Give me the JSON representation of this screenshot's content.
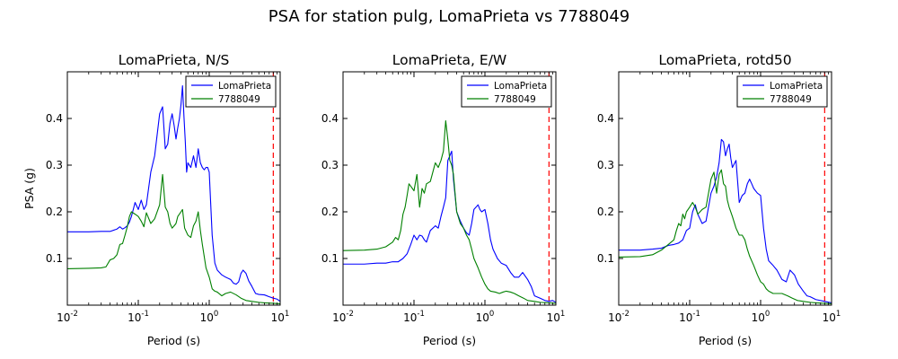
{
  "figure": {
    "suptitle": "PSA for station pulg, LomaPrieta vs 7788049"
  },
  "colors": {
    "LomaPrieta": "#0000ff",
    "7788049": "#008000",
    "reference_line": "#ff0000"
  },
  "chart_data": [
    {
      "type": "line",
      "title": "LomaPrieta, N/S",
      "xlabel": "Period (s)",
      "ylabel": "PSA (g)",
      "xscale": "log",
      "xlim": [
        0.01,
        10
      ],
      "ylim": [
        0,
        0.5
      ],
      "xticks": [
        0.01,
        0.1,
        1,
        10
      ],
      "xtick_labels": [
        {
          "base": "10",
          "exp": "-2"
        },
        {
          "base": "10",
          "exp": "-1"
        },
        {
          "base": "10",
          "exp": "0"
        },
        {
          "base": "10",
          "exp": "1"
        }
      ],
      "yticks": [
        0.1,
        0.2,
        0.3,
        0.4
      ],
      "ytick_labels": [
        "0.1",
        "0.2",
        "0.3",
        "0.4"
      ],
      "legend": "top-right",
      "grid": false,
      "vline": 8,
      "series": [
        {
          "name": "LomaPrieta",
          "x": [
            0.01,
            0.02,
            0.03,
            0.04,
            0.05,
            0.055,
            0.06,
            0.065,
            0.07,
            0.075,
            0.08,
            0.085,
            0.09,
            0.1,
            0.11,
            0.12,
            0.13,
            0.15,
            0.17,
            0.2,
            0.22,
            0.24,
            0.26,
            0.28,
            0.3,
            0.32,
            0.34,
            0.36,
            0.38,
            0.4,
            0.42,
            0.44,
            0.46,
            0.48,
            0.5,
            0.55,
            0.6,
            0.65,
            0.7,
            0.75,
            0.8,
            0.85,
            0.9,
            0.95,
            1.0,
            1.1,
            1.2,
            1.3,
            1.5,
            1.7,
            2.0,
            2.2,
            2.4,
            2.6,
            2.8,
            3.0,
            3.3,
            3.6,
            4.0,
            4.5,
            5.0,
            6.0,
            7.0,
            8.0,
            9.0,
            10.0
          ],
          "y": [
            0.157,
            0.157,
            0.158,
            0.158,
            0.163,
            0.168,
            0.163,
            0.166,
            0.17,
            0.178,
            0.19,
            0.205,
            0.22,
            0.205,
            0.225,
            0.205,
            0.215,
            0.285,
            0.32,
            0.41,
            0.425,
            0.335,
            0.345,
            0.39,
            0.41,
            0.385,
            0.356,
            0.38,
            0.4,
            0.43,
            0.47,
            0.405,
            0.35,
            0.285,
            0.305,
            0.295,
            0.32,
            0.295,
            0.335,
            0.305,
            0.295,
            0.29,
            0.295,
            0.295,
            0.285,
            0.15,
            0.09,
            0.075,
            0.065,
            0.06,
            0.055,
            0.047,
            0.045,
            0.05,
            0.068,
            0.075,
            0.068,
            0.052,
            0.04,
            0.025,
            0.023,
            0.022,
            0.018,
            0.015,
            0.013,
            0.008
          ]
        },
        {
          "name": "7788049",
          "x": [
            0.01,
            0.02,
            0.03,
            0.035,
            0.04,
            0.045,
            0.05,
            0.055,
            0.06,
            0.065,
            0.07,
            0.075,
            0.08,
            0.09,
            0.1,
            0.11,
            0.12,
            0.13,
            0.15,
            0.17,
            0.2,
            0.22,
            0.24,
            0.26,
            0.28,
            0.3,
            0.32,
            0.34,
            0.36,
            0.38,
            0.4,
            0.42,
            0.45,
            0.5,
            0.55,
            0.6,
            0.65,
            0.7,
            0.75,
            0.8,
            0.9,
            1.0,
            1.1,
            1.2,
            1.3,
            1.5,
            1.7,
            2.0,
            2.4,
            2.8,
            3.3,
            4.0,
            5.0,
            6.0,
            8.0,
            10.0
          ],
          "y": [
            0.078,
            0.079,
            0.08,
            0.082,
            0.097,
            0.1,
            0.108,
            0.13,
            0.132,
            0.15,
            0.168,
            0.19,
            0.2,
            0.195,
            0.19,
            0.18,
            0.168,
            0.198,
            0.175,
            0.185,
            0.215,
            0.28,
            0.21,
            0.2,
            0.175,
            0.165,
            0.17,
            0.175,
            0.19,
            0.195,
            0.2,
            0.205,
            0.165,
            0.15,
            0.145,
            0.17,
            0.18,
            0.2,
            0.16,
            0.13,
            0.08,
            0.06,
            0.035,
            0.03,
            0.028,
            0.02,
            0.025,
            0.028,
            0.022,
            0.015,
            0.01,
            0.008,
            0.006,
            0.005,
            0.004,
            0.003
          ]
        }
      ]
    },
    {
      "type": "line",
      "title": "LomaPrieta, E/W",
      "xlabel": "Period (s)",
      "ylabel": "",
      "xscale": "log",
      "xlim": [
        0.01,
        10
      ],
      "ylim": [
        0,
        0.5
      ],
      "xticks": [
        0.01,
        0.1,
        1,
        10
      ],
      "xtick_labels": [
        {
          "base": "10",
          "exp": "-2"
        },
        {
          "base": "10",
          "exp": "-1"
        },
        {
          "base": "10",
          "exp": "0"
        },
        {
          "base": "10",
          "exp": "1"
        }
      ],
      "yticks": [
        0.1,
        0.2,
        0.3,
        0.4
      ],
      "ytick_labels": [
        "0.1",
        "0.2",
        "0.3",
        "0.4"
      ],
      "legend": "top-right",
      "grid": false,
      "vline": 8,
      "series": [
        {
          "name": "LomaPrieta",
          "x": [
            0.01,
            0.02,
            0.03,
            0.04,
            0.05,
            0.06,
            0.07,
            0.08,
            0.09,
            0.1,
            0.11,
            0.12,
            0.13,
            0.14,
            0.15,
            0.17,
            0.2,
            0.22,
            0.24,
            0.26,
            0.28,
            0.3,
            0.32,
            0.34,
            0.36,
            0.4,
            0.45,
            0.5,
            0.55,
            0.6,
            0.65,
            0.7,
            0.75,
            0.8,
            0.85,
            0.9,
            1.0,
            1.1,
            1.2,
            1.3,
            1.5,
            1.7,
            2.0,
            2.3,
            2.6,
            3.0,
            3.4,
            4.0,
            4.5,
            5.0,
            6.0,
            7.0,
            8.0,
            9.0,
            10.0
          ],
          "y": [
            0.088,
            0.088,
            0.09,
            0.09,
            0.093,
            0.093,
            0.1,
            0.11,
            0.13,
            0.15,
            0.14,
            0.15,
            0.148,
            0.14,
            0.135,
            0.16,
            0.17,
            0.165,
            0.19,
            0.21,
            0.23,
            0.31,
            0.32,
            0.33,
            0.27,
            0.2,
            0.18,
            0.165,
            0.155,
            0.15,
            0.175,
            0.205,
            0.21,
            0.215,
            0.205,
            0.2,
            0.205,
            0.175,
            0.14,
            0.12,
            0.1,
            0.09,
            0.085,
            0.07,
            0.06,
            0.06,
            0.07,
            0.055,
            0.04,
            0.02,
            0.015,
            0.01,
            0.008,
            0.01,
            0.006
          ]
        },
        {
          "name": "7788049",
          "x": [
            0.01,
            0.02,
            0.03,
            0.04,
            0.05,
            0.055,
            0.06,
            0.065,
            0.07,
            0.075,
            0.08,
            0.085,
            0.09,
            0.1,
            0.11,
            0.12,
            0.13,
            0.14,
            0.15,
            0.17,
            0.2,
            0.22,
            0.24,
            0.26,
            0.28,
            0.3,
            0.32,
            0.34,
            0.36,
            0.4,
            0.45,
            0.5,
            0.55,
            0.6,
            0.65,
            0.7,
            0.8,
            0.9,
            1.0,
            1.1,
            1.2,
            1.4,
            1.6,
            1.8,
            2.0,
            2.3,
            2.6,
            3.0,
            3.5,
            4.0,
            5.0,
            6.0,
            8.0,
            10.0
          ],
          "y": [
            0.117,
            0.118,
            0.12,
            0.125,
            0.135,
            0.145,
            0.14,
            0.16,
            0.195,
            0.21,
            0.235,
            0.26,
            0.255,
            0.245,
            0.28,
            0.21,
            0.25,
            0.24,
            0.26,
            0.265,
            0.305,
            0.295,
            0.31,
            0.33,
            0.395,
            0.355,
            0.31,
            0.3,
            0.28,
            0.2,
            0.175,
            0.165,
            0.15,
            0.14,
            0.12,
            0.1,
            0.08,
            0.06,
            0.045,
            0.035,
            0.03,
            0.028,
            0.025,
            0.028,
            0.03,
            0.028,
            0.025,
            0.02,
            0.015,
            0.01,
            0.008,
            0.006,
            0.005,
            0.004
          ]
        }
      ]
    },
    {
      "type": "line",
      "title": "LomaPrieta, rotd50",
      "xlabel": "Period (s)",
      "ylabel": "",
      "xscale": "log",
      "xlim": [
        0.01,
        10
      ],
      "ylim": [
        0,
        0.5
      ],
      "xticks": [
        0.01,
        0.1,
        1,
        10
      ],
      "xtick_labels": [
        {
          "base": "10",
          "exp": "-2"
        },
        {
          "base": "10",
          "exp": "-1"
        },
        {
          "base": "10",
          "exp": "0"
        },
        {
          "base": "10",
          "exp": "1"
        }
      ],
      "yticks": [
        0.1,
        0.2,
        0.3,
        0.4
      ],
      "ytick_labels": [
        "0.1",
        "0.2",
        "0.3",
        "0.4"
      ],
      "legend": "top-right",
      "grid": false,
      "vline": 8,
      "series": [
        {
          "name": "LomaPrieta",
          "x": [
            0.01,
            0.02,
            0.03,
            0.04,
            0.05,
            0.06,
            0.07,
            0.08,
            0.09,
            0.1,
            0.11,
            0.12,
            0.13,
            0.15,
            0.17,
            0.2,
            0.22,
            0.24,
            0.26,
            0.28,
            0.3,
            0.32,
            0.34,
            0.36,
            0.38,
            0.4,
            0.45,
            0.5,
            0.55,
            0.6,
            0.65,
            0.7,
            0.75,
            0.8,
            0.9,
            1.0,
            1.1,
            1.2,
            1.3,
            1.5,
            1.7,
            2.0,
            2.3,
            2.6,
            3.0,
            3.4,
            4.0,
            4.5,
            5.0,
            6.0,
            8.0,
            10.0
          ],
          "y": [
            0.118,
            0.118,
            0.12,
            0.122,
            0.128,
            0.13,
            0.133,
            0.14,
            0.16,
            0.165,
            0.2,
            0.215,
            0.195,
            0.175,
            0.18,
            0.24,
            0.255,
            0.275,
            0.305,
            0.355,
            0.35,
            0.32,
            0.335,
            0.345,
            0.315,
            0.295,
            0.31,
            0.22,
            0.235,
            0.24,
            0.26,
            0.27,
            0.26,
            0.25,
            0.24,
            0.235,
            0.165,
            0.12,
            0.095,
            0.085,
            0.075,
            0.055,
            0.05,
            0.075,
            0.065,
            0.045,
            0.03,
            0.02,
            0.018,
            0.012,
            0.008,
            0.005
          ]
        },
        {
          "name": "7788049",
          "x": [
            0.01,
            0.02,
            0.03,
            0.04,
            0.05,
            0.06,
            0.065,
            0.07,
            0.075,
            0.08,
            0.085,
            0.09,
            0.1,
            0.11,
            0.12,
            0.13,
            0.14,
            0.15,
            0.17,
            0.2,
            0.22,
            0.24,
            0.26,
            0.28,
            0.3,
            0.32,
            0.34,
            0.36,
            0.4,
            0.45,
            0.5,
            0.55,
            0.6,
            0.65,
            0.7,
            0.8,
            0.9,
            1.0,
            1.1,
            1.2,
            1.3,
            1.5,
            1.7,
            2.0,
            2.4,
            2.8,
            3.3,
            4.0,
            5.0,
            6.0,
            8.0,
            10.0
          ],
          "y": [
            0.103,
            0.104,
            0.108,
            0.118,
            0.13,
            0.14,
            0.16,
            0.175,
            0.17,
            0.195,
            0.185,
            0.2,
            0.21,
            0.22,
            0.21,
            0.195,
            0.2,
            0.205,
            0.21,
            0.27,
            0.285,
            0.24,
            0.28,
            0.29,
            0.26,
            0.255,
            0.225,
            0.21,
            0.19,
            0.165,
            0.15,
            0.15,
            0.14,
            0.12,
            0.105,
            0.085,
            0.065,
            0.05,
            0.045,
            0.035,
            0.03,
            0.025,
            0.025,
            0.025,
            0.02,
            0.015,
            0.01,
            0.008,
            0.006,
            0.005,
            0.004,
            0.003
          ]
        }
      ]
    }
  ]
}
